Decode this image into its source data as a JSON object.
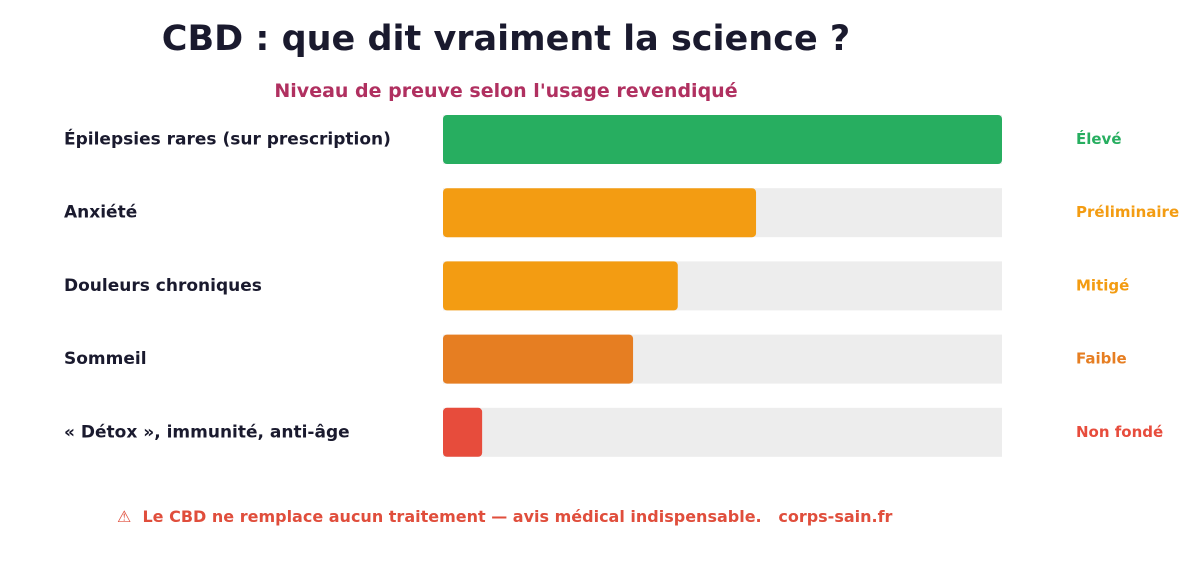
{
  "header": {
    "title": "CBD : que dit vraiment la science ?",
    "subtitle": "Niveau de preuve selon l'usage revendiqué"
  },
  "chart_data": {
    "type": "bar",
    "orientation": "horizontal",
    "title": "CBD : que dit vraiment la science ?",
    "subtitle": "Niveau de preuve selon l'usage revendiqué",
    "categories": [
      "Épilepsies rares (sur prescription)",
      "Anxiété",
      "Douleurs chroniques",
      "Sommeil",
      "« Détox », immunité, anti-âge"
    ],
    "values": [
      100,
      56,
      42,
      34,
      7
    ],
    "level_labels": [
      "Élevé",
      "Préliminaire",
      "Mitigé",
      "Faible",
      "Non fondé"
    ],
    "colors": [
      "#27ae60",
      "#f39c12",
      "#f39c12",
      "#e67e22",
      "#e74c3c"
    ],
    "track_color": "#ededed",
    "xlim": [
      0,
      100
    ],
    "grid": false,
    "legend": "none"
  },
  "footer": {
    "warning_icon": "warning-icon",
    "text": "⚠  Le CBD ne remplace aucun traitement — avis médical indispensable.   corps-sain.fr"
  }
}
